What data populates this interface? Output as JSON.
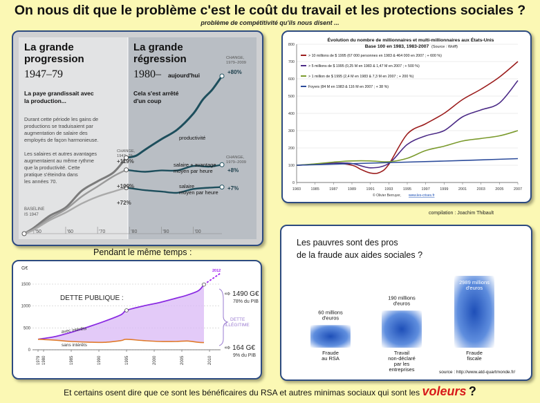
{
  "page": {
    "title": "On nous dit que le problème c'est le coût du travail et les protections sociales ?",
    "subtitle": "problème de compétitivité qu'ils nous disent ...",
    "credit": "compilation : Joachim Thibault",
    "meanwhile": "Pendant le même temps :",
    "bottom_text": "Et certains osent dire que ce sont les bénéficaires du RSA et autres minimas sociaux qui sont les",
    "bottom_highlight": "voleurs",
    "bottom_end": "?",
    "colors": {
      "background": "#fbf8b4",
      "panel_border": "#2c4a80",
      "accent_red": "#d71a1a"
    }
  },
  "chart_data": [
    {
      "type": "line",
      "left_heading": [
        "La grande",
        "progression"
      ],
      "left_period": "1947–79",
      "left_subheading": [
        "La paye grandissait avec",
        "la production..."
      ],
      "left_body": [
        "Durant cette période les gains de",
        "productions se traduisaient par",
        "augmentation de salaire des",
        "employés de façon harmonieuse.",
        "",
        "Les salaires et autres avantages",
        "augmentaient au même rythme",
        "que la productivité. Cette",
        "pratique s'éteindra dans",
        "les années 70."
      ],
      "right_heading": [
        "La grande",
        "régression"
      ],
      "right_period": "1980–",
      "right_period_suffix": "aujourd'hui",
      "right_subheading": [
        "Cela s'est arrêté",
        "d'un coup"
      ],
      "baseline_label": [
        "BASELINE",
        "IS 1947"
      ],
      "change_label_left": [
        "CHANGE,",
        "1947–79"
      ],
      "change_label_right": [
        "CHANGE,",
        "1979–2009"
      ],
      "x_ticks": [
        "'50",
        "'60",
        "'70",
        "'80",
        "'90",
        "'00"
      ],
      "x_range": [
        1947,
        2009
      ],
      "y_range": [
        0,
        260
      ],
      "series": [
        {
          "name": "productivité",
          "change_1947_79": "+119%",
          "change_1979_2009": "+80%",
          "x": [
            1947,
            1950,
            1955,
            1960,
            1965,
            1970,
            1975,
            1979,
            1982,
            1985,
            1990,
            1995,
            2000,
            2003,
            2006,
            2009
          ],
          "y": [
            0,
            9,
            28,
            41,
            67,
            82,
            96,
            119,
            122,
            132,
            148,
            163,
            188,
            210,
            226,
            247
          ]
        },
        {
          "name": "salaire + avantage moyen par heure",
          "change_1947_79": "+100%",
          "change_1979_2009": "+8%",
          "x": [
            1947,
            1950,
            1955,
            1960,
            1965,
            1970,
            1975,
            1979,
            1982,
            1985,
            1990,
            1995,
            2000,
            2005,
            2009
          ],
          "y": [
            0,
            7,
            24,
            38,
            58,
            74,
            90,
            100,
            98,
            97,
            99,
            99,
            106,
            105,
            108
          ]
        },
        {
          "name": "salaire moyen par heure",
          "change_1947_79": "+72%",
          "change_1979_2009": "+7%",
          "x": [
            1947,
            1950,
            1955,
            1960,
            1965,
            1970,
            1975,
            1979,
            1982,
            1985,
            1990,
            1995,
            2000,
            2005,
            2009
          ],
          "y": [
            0,
            6,
            21,
            33,
            47,
            58,
            66,
            72,
            70,
            68,
            66,
            64,
            70,
            72,
            73
          ]
        }
      ],
      "series_labels": {
        "productivity": "productivité",
        "comp": [
          "salaire + avantage",
          "moyen par heure"
        ],
        "wage": [
          "salaire",
          "moyen par heure"
        ]
      }
    },
    {
      "type": "line",
      "title": [
        "Évolution du nombre de millionnaires et multi-millionnaires aux États-Unis",
        "Base 100 en 1983, 1983-2007"
      ],
      "title_source": "(Source : Wolff)",
      "x_ticks": [
        "1983",
        "1985",
        "1987",
        "1989",
        "1991",
        "1993",
        "1995",
        "1997",
        "1999",
        "2001",
        "2003",
        "2005",
        "2007"
      ],
      "y_ticks": [
        0,
        100,
        200,
        300,
        400,
        500,
        600,
        700,
        800
      ],
      "ylim": [
        0,
        800
      ],
      "xlim": [
        1983,
        2007
      ],
      "source": "© Olivier Berruyer,",
      "source_link": "www.les-crises.fr",
      "series": [
        {
          "name": "> 10 millions de $ 1995 (67 000 personnes en 1983 & 464 000 en 2007 ; + 600 %)",
          "color": "#9b1c1c",
          "x": [
            1983,
            1985,
            1987,
            1989,
            1990,
            1991,
            1992,
            1993,
            1995,
            1997,
            1999,
            2001,
            2003,
            2005,
            2007
          ],
          "y": [
            100,
            105,
            112,
            100,
            75,
            55,
            58,
            105,
            280,
            340,
            400,
            480,
            540,
            610,
            700
          ]
        },
        {
          "name": "> 5 millions de $ 1995 (0,25 M en 1983 & 1,47 M en 2007 ; + 500 %)",
          "color": "#4b2a86",
          "x": [
            1983,
            1985,
            1987,
            1989,
            1991,
            1993,
            1995,
            1997,
            1999,
            2001,
            2003,
            2005,
            2007
          ],
          "y": [
            100,
            105,
            112,
            110,
            85,
            110,
            220,
            270,
            300,
            380,
            420,
            460,
            590
          ]
        },
        {
          "name": "> 1 million de $ 1995 (2,4 M en 1983 & 7,3 M en 2007 ; + 200 %)",
          "color": "#7a9a2c",
          "x": [
            1983,
            1985,
            1987,
            1989,
            1991,
            1993,
            1995,
            1997,
            1999,
            2001,
            2003,
            2005,
            2007
          ],
          "y": [
            100,
            108,
            118,
            125,
            125,
            120,
            140,
            185,
            210,
            240,
            255,
            270,
            300
          ]
        },
        {
          "name": "Foyers (84 M en 1983 & 116 M en 2007 ; + 38 %)",
          "color": "#2a4a9a",
          "x": [
            1983,
            1987,
            1991,
            1995,
            1999,
            2003,
            2007
          ],
          "y": [
            100,
            106,
            112,
            118,
            124,
            131,
            138
          ]
        }
      ]
    },
    {
      "type": "area",
      "title": "DETTE PUBLIQUE :",
      "y_unit": "G€",
      "y_ticks": [
        0,
        500,
        1000,
        1500
      ],
      "ylim": [
        0,
        1800
      ],
      "x_ticks": [
        "1979",
        "1980",
        "1985",
        "1990",
        "1995",
        "2000",
        "2005",
        "2010"
      ],
      "xlim": [
        1978,
        2012
      ],
      "label_2012": "2012",
      "series": [
        {
          "name": "avec intérêts",
          "color": "#8a2be2",
          "x": [
            1979,
            1982,
            1985,
            1988,
            1991,
            1994,
            1995,
            1998,
            2001,
            2004,
            2006,
            2008,
            2009
          ],
          "y": [
            240,
            300,
            400,
            520,
            650,
            800,
            900,
            1000,
            1080,
            1180,
            1250,
            1350,
            1490
          ]
        },
        {
          "name": "sans intérêts",
          "color": "#e07a2a",
          "x": [
            1979,
            1982,
            1985,
            1988,
            1991,
            1994,
            1995,
            1998,
            2001,
            2004,
            2006,
            2008,
            2009
          ],
          "y": [
            240,
            220,
            190,
            175,
            170,
            210,
            240,
            210,
            190,
            190,
            200,
            170,
            164
          ]
        }
      ],
      "projection": {
        "x": [
          2009,
          2012
        ],
        "y": [
          1490,
          1750
        ]
      },
      "annotations": {
        "top_value": "1490 G€",
        "top_pct": "78% du PIB",
        "bottom_value": "164 G€",
        "bottom_pct": "9% du PIB",
        "illegitimate": [
          "DETTE",
          "ILLÉGITIME"
        ]
      }
    },
    {
      "type": "bar",
      "title": [
        "Les pauvres sont des pros",
        "de la fraude aux aides sociales ?"
      ],
      "categories": [
        [
          "Fraude",
          "au RSA"
        ],
        [
          "Travail",
          "non-déclaré",
          "par les",
          "entreprises"
        ],
        [
          "Fraude",
          "fiscale"
        ]
      ],
      "values": [
        60,
        190,
        2989
      ],
      "value_labels": [
        [
          "60 millions",
          "d'euros"
        ],
        [
          "190 millions",
          "d'euros"
        ],
        [
          "2989 millions",
          "d'euros"
        ]
      ],
      "source": "source : http://www.atd-quartmonde.fr/",
      "color": "#2a5fc0"
    }
  ]
}
